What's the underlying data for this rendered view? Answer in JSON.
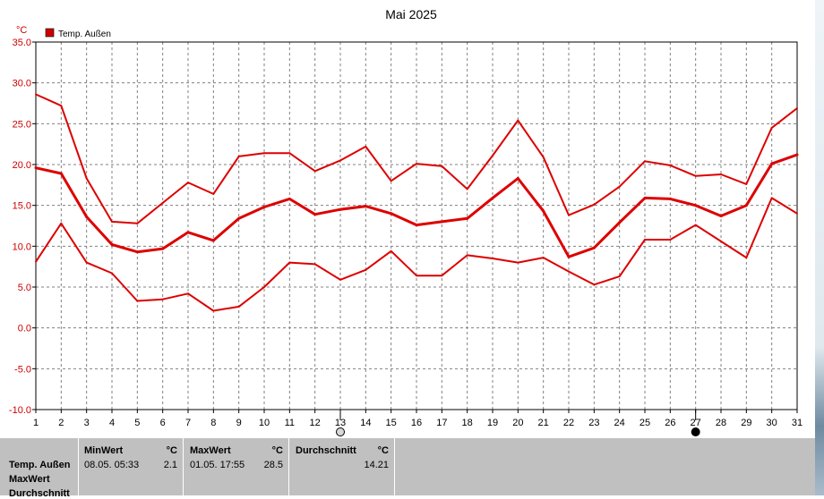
{
  "chart_data": {
    "type": "line",
    "title": "Mai 2025",
    "ylabel": "°C",
    "xlabel": "",
    "ylim": [
      -10,
      35
    ],
    "yticks": [
      "-10.0",
      "-5.0",
      "0.0",
      "5.0",
      "10.0",
      "15.0",
      "20.0",
      "25.0",
      "30.0",
      "35.0"
    ],
    "x": [
      1,
      2,
      3,
      4,
      5,
      6,
      7,
      8,
      9,
      10,
      11,
      12,
      13,
      14,
      15,
      16,
      17,
      18,
      19,
      20,
      21,
      22,
      23,
      24,
      25,
      26,
      27,
      28,
      29,
      30,
      31
    ],
    "grid": true,
    "legend": {
      "position": "top-left",
      "label": "Temp. Außen",
      "color": "#cc0000"
    },
    "series": [
      {
        "role": "max",
        "color": "#dd0000",
        "values": [
          28.6,
          27.2,
          18.3,
          13.0,
          12.8,
          15.3,
          17.8,
          16.4,
          21.0,
          21.4,
          21.4,
          19.2,
          20.5,
          22.2,
          18.0,
          20.1,
          19.8,
          17.0,
          21.1,
          25.4,
          20.9,
          13.8,
          15.1,
          17.3,
          20.4,
          19.9,
          18.6,
          18.8,
          17.6,
          24.5,
          26.9
        ]
      },
      {
        "role": "avg",
        "color": "#dd0000",
        "values": [
          19.6,
          18.9,
          13.6,
          10.2,
          9.3,
          9.7,
          11.7,
          10.7,
          13.4,
          14.8,
          15.8,
          13.9,
          14.5,
          14.9,
          14.0,
          12.6,
          13.0,
          13.4,
          15.9,
          18.3,
          14.3,
          8.7,
          9.8,
          12.9,
          15.9,
          15.8,
          15.0,
          13.7,
          15.0,
          20.1,
          21.2
        ]
      },
      {
        "role": "min",
        "color": "#dd0000",
        "values": [
          8.1,
          12.8,
          8.0,
          6.7,
          3.3,
          3.5,
          4.2,
          2.1,
          2.6,
          5.0,
          8.0,
          7.8,
          5.9,
          7.1,
          9.4,
          6.4,
          6.4,
          8.9,
          8.5,
          8.0,
          8.6,
          6.9,
          5.3,
          6.3,
          10.8,
          10.8,
          12.6,
          10.6,
          8.6,
          15.9,
          14.0
        ]
      }
    ],
    "markers": [
      {
        "x": 13,
        "symbol": "moon-full-outline-icon"
      },
      {
        "x": 27,
        "symbol": "moon-new-filled-icon"
      }
    ]
  },
  "stats": {
    "row_labels": [
      "Temp. Außen",
      "MaxWert",
      "Durchschnitt"
    ],
    "min": {
      "header": "MinWert",
      "unit": "°C",
      "date": "08.05.  05:33",
      "value": "2.1"
    },
    "max": {
      "header": "MaxWert",
      "unit": "°C",
      "date": "01.05.  17:55",
      "value": "28.5"
    },
    "avg": {
      "header": "Durchschnitt",
      "unit": "°C",
      "value": "14.21"
    }
  }
}
